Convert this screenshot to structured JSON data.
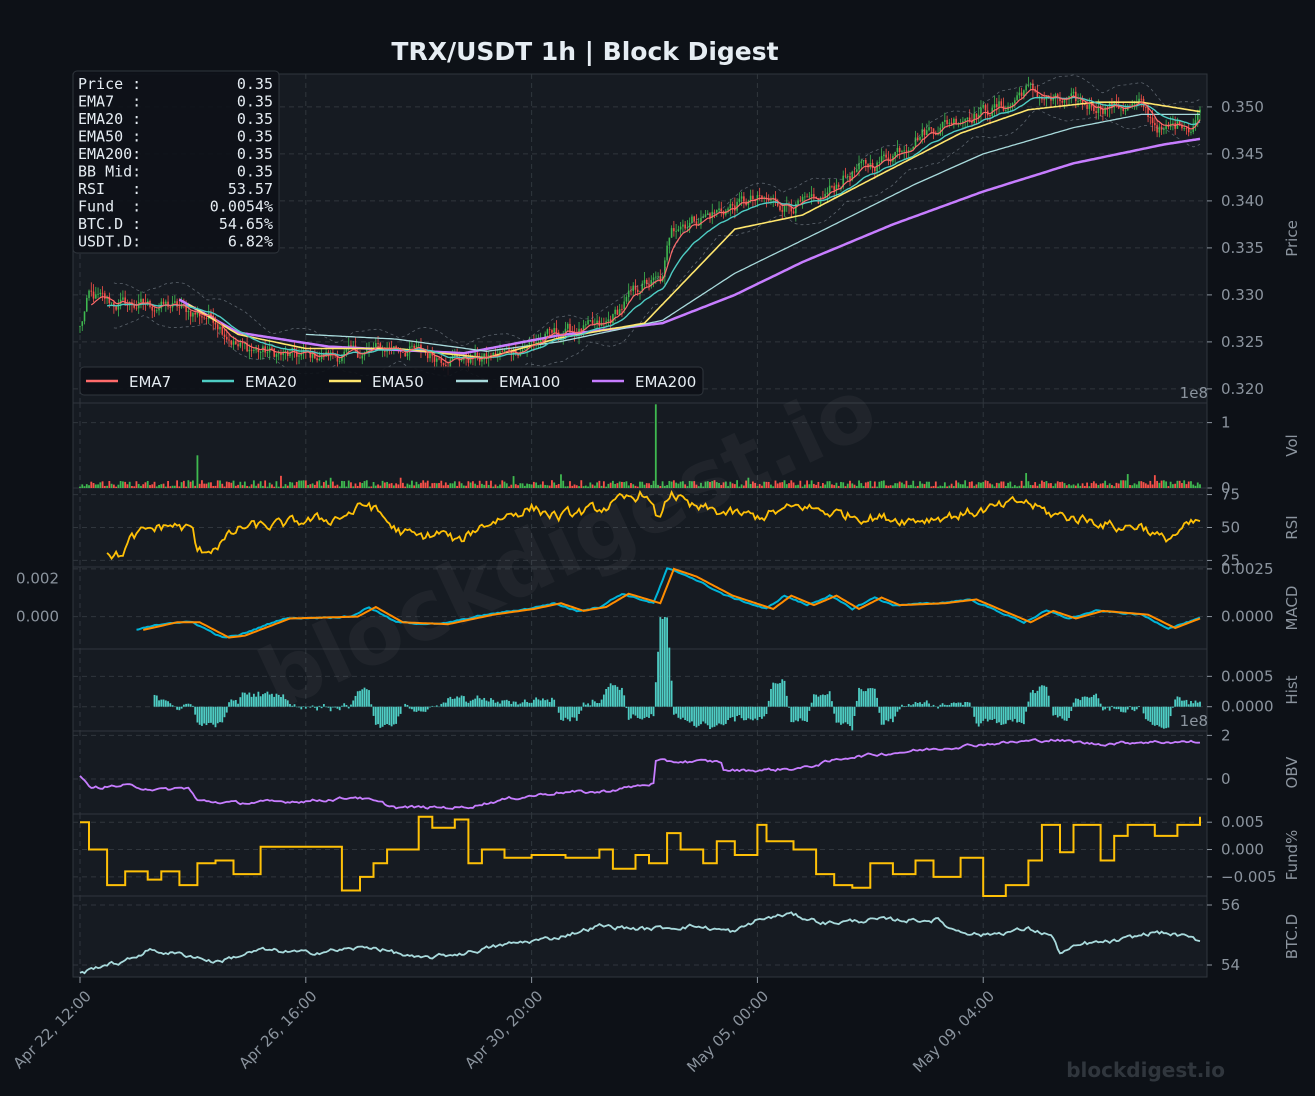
{
  "colors": {
    "background": "#0d1117",
    "panel": "#161b22",
    "grid": "#30363d",
    "text": "#e6edf3",
    "muted": "#8b949e",
    "candle_up": "#3fb950",
    "candle_down": "#f85149",
    "ema7": "#ff6b6b",
    "ema20": "#4ecdc4",
    "ema50": "#ffe66d",
    "ema100": "#a8dadc",
    "ema200": "#c77dff",
    "rsi": "#ffc107",
    "macd": "#00b4d8",
    "signal": "#ff8c00",
    "hist": "#4ecdc4",
    "obv": "#c77dff",
    "fund": "#ffc107",
    "btcd": "#a8dadc"
  },
  "chart_data": {
    "type": "line",
    "title": "TRX/USDT  1h  |  Block Digest",
    "watermark": "blockdigest.io",
    "brand": "blockdigest.io",
    "x": {
      "start": "2024-04-22 12:00",
      "end": "2024-05-12 16:00",
      "interval": "1h",
      "tick_labels": [
        "Apr 22, 12:00",
        "Apr 26, 16:00",
        "Apr 30, 20:00",
        "May 05, 00:00",
        "May 09, 04:00"
      ]
    },
    "info_box": [
      {
        "label": "Price :",
        "value": "0.35"
      },
      {
        "label": "EMA7  :",
        "value": "0.35"
      },
      {
        "label": "EMA20 :",
        "value": "0.35"
      },
      {
        "label": "EMA50 :",
        "value": "0.35"
      },
      {
        "label": "EMA200:",
        "value": "0.35"
      },
      {
        "label": "BB Mid:",
        "value": "0.35"
      },
      {
        "label": "RSI   :",
        "value": "53.57"
      },
      {
        "label": "Fund  :",
        "value": "0.0054%"
      },
      {
        "label": "BTC.D :",
        "value": "54.65%"
      },
      {
        "label": "USDT.D:",
        "value": "6.82%"
      }
    ],
    "legend": [
      "EMA7",
      "EMA20",
      "EMA50",
      "EMA100",
      "EMA200"
    ],
    "panels": [
      {
        "key": "price",
        "ylabel": "Price",
        "ylim": [
          0.3185,
          0.3535
        ],
        "ticks": [
          0.32,
          0.325,
          0.33,
          0.335,
          0.34,
          0.345,
          0.35
        ],
        "tick_labels": [
          "0.320",
          "0.325",
          "0.330",
          "0.335",
          "0.340",
          "0.345",
          "0.350"
        ]
      },
      {
        "key": "vol",
        "ylabel": "Vol",
        "ylim": [
          0,
          1.3
        ],
        "exponent": "1e8",
        "ticks": [
          0,
          1
        ],
        "tick_labels": [
          "0",
          "1"
        ]
      },
      {
        "key": "rsi",
        "ylabel": "RSI",
        "ylim": [
          20,
          80
        ],
        "ticks": [
          25,
          50,
          75
        ],
        "tick_labels": [
          "25",
          "50",
          "75"
        ]
      },
      {
        "key": "macd",
        "ylabel": "MACD",
        "ylim": [
          -0.0017,
          0.0026
        ],
        "ticks": [
          0,
          0.0025
        ],
        "tick_labels": [
          "0.0000",
          "0.0025"
        ],
        "left_ticks": [
          0,
          0.002
        ],
        "left_tick_labels": [
          "0.000",
          "0.002"
        ]
      },
      {
        "key": "hist",
        "ylabel": "Hist",
        "ylim": [
          -0.0004,
          0.00095
        ],
        "ticks": [
          0,
          0.0005
        ],
        "tick_labels": [
          "0.0000",
          "0.0005"
        ]
      },
      {
        "key": "obv",
        "ylabel": "OBV",
        "ylim": [
          -1.6,
          2.2
        ],
        "exponent": "1e8",
        "ticks": [
          0,
          2
        ],
        "tick_labels": [
          "0",
          "2"
        ]
      },
      {
        "key": "fund",
        "ylabel": "Fund%",
        "ylim": [
          -0.0085,
          0.0065
        ],
        "ticks": [
          -0.005,
          0,
          0.005
        ],
        "tick_labels": [
          "−0.005",
          "0.000",
          "0.005"
        ]
      },
      {
        "key": "btcd",
        "ylabel": "BTC.D",
        "ylim": [
          53.6,
          56.3
        ],
        "ticks": [
          54,
          56
        ],
        "tick_labels": [
          "54",
          "56"
        ]
      }
    ],
    "anchors": {
      "price": [
        [
          0,
          0.3265
        ],
        [
          4,
          0.3298
        ],
        [
          16,
          0.329
        ],
        [
          40,
          0.3288
        ],
        [
          60,
          0.3275
        ],
        [
          70,
          0.3245
        ],
        [
          92,
          0.3235
        ],
        [
          118,
          0.3236
        ],
        [
          140,
          0.3245
        ],
        [
          158,
          0.3235
        ],
        [
          180,
          0.3232
        ],
        [
          196,
          0.3245
        ],
        [
          212,
          0.326
        ],
        [
          232,
          0.3265
        ],
        [
          248,
          0.331
        ],
        [
          258,
          0.3315
        ],
        [
          262,
          0.3375
        ],
        [
          272,
          0.338
        ],
        [
          296,
          0.34
        ],
        [
          326,
          0.3395
        ],
        [
          338,
          0.3425
        ],
        [
          356,
          0.3445
        ],
        [
          372,
          0.3472
        ],
        [
          394,
          0.3493
        ],
        [
          412,
          0.3502
        ],
        [
          418,
          0.352
        ],
        [
          432,
          0.3505
        ],
        [
          452,
          0.3502
        ],
        [
          470,
          0.35
        ],
        [
          480,
          0.3472
        ],
        [
          488,
          0.3485
        ],
        [
          492,
          0.348
        ],
        [
          496,
          0.3495
        ]
      ],
      "ema200": [
        [
          44,
          0.3295
        ],
        [
          70,
          0.326
        ],
        [
          110,
          0.3245
        ],
        [
          170,
          0.3238
        ],
        [
          212,
          0.3257
        ],
        [
          258,
          0.327
        ],
        [
          290,
          0.33
        ],
        [
          320,
          0.3335
        ],
        [
          360,
          0.3375
        ],
        [
          400,
          0.341
        ],
        [
          440,
          0.344
        ],
        [
          480,
          0.346
        ],
        [
          496,
          0.3466
        ]
      ],
      "ema100": [
        [
          100,
          0.3258
        ],
        [
          140,
          0.3253
        ],
        [
          180,
          0.324
        ],
        [
          212,
          0.325
        ],
        [
          258,
          0.3273
        ],
        [
          290,
          0.3323
        ],
        [
          330,
          0.337
        ],
        [
          370,
          0.3418
        ],
        [
          400,
          0.345
        ],
        [
          440,
          0.3478
        ],
        [
          470,
          0.3492
        ],
        [
          496,
          0.3492
        ]
      ],
      "ema50": [
        [
          48,
          0.329
        ],
        [
          70,
          0.3258
        ],
        [
          100,
          0.3243
        ],
        [
          140,
          0.3243
        ],
        [
          180,
          0.3233
        ],
        [
          212,
          0.3254
        ],
        [
          250,
          0.327
        ],
        [
          262,
          0.33
        ],
        [
          290,
          0.337
        ],
        [
          320,
          0.3385
        ],
        [
          356,
          0.343
        ],
        [
          390,
          0.3472
        ],
        [
          420,
          0.3497
        ],
        [
          450,
          0.3505
        ],
        [
          470,
          0.3505
        ],
        [
          496,
          0.3495
        ]
      ],
      "rsi": [
        [
          12,
          32
        ],
        [
          18,
          28
        ],
        [
          22,
          40
        ],
        [
          30,
          48
        ],
        [
          40,
          52
        ],
        [
          50,
          48
        ],
        [
          52,
          30
        ],
        [
          60,
          36
        ],
        [
          72,
          50
        ],
        [
          90,
          52
        ],
        [
          100,
          55
        ],
        [
          110,
          56
        ],
        [
          118,
          60
        ],
        [
          128,
          68
        ],
        [
          134,
          58
        ],
        [
          140,
          48
        ],
        [
          150,
          42
        ],
        [
          160,
          46
        ],
        [
          168,
          38
        ],
        [
          176,
          50
        ],
        [
          190,
          60
        ],
        [
          200,
          65
        ],
        [
          212,
          58
        ],
        [
          230,
          64
        ],
        [
          244,
          72
        ],
        [
          250,
          77
        ],
        [
          256,
          55
        ],
        [
          262,
          78
        ],
        [
          270,
          65
        ],
        [
          290,
          60
        ],
        [
          300,
          58
        ],
        [
          320,
          66
        ],
        [
          330,
          62
        ],
        [
          350,
          58
        ],
        [
          370,
          56
        ],
        [
          390,
          60
        ],
        [
          410,
          66
        ],
        [
          418,
          70
        ],
        [
          430,
          60
        ],
        [
          450,
          55
        ],
        [
          460,
          50
        ],
        [
          470,
          52
        ],
        [
          480,
          40
        ],
        [
          490,
          50
        ],
        [
          496,
          54
        ]
      ],
      "macd": [
        [
          25,
          -0.0007
        ],
        [
          40,
          -0.0003
        ],
        [
          50,
          -0.0003
        ],
        [
          63,
          -0.0011
        ],
        [
          70,
          -0.001
        ],
        [
          90,
          -0.0001
        ],
        [
          120,
          0.0
        ],
        [
          128,
          0.0005
        ],
        [
          140,
          -0.0003
        ],
        [
          160,
          -0.0004
        ],
        [
          180,
          0.0001
        ],
        [
          198,
          0.0004
        ],
        [
          210,
          0.0007
        ],
        [
          220,
          0.0003
        ],
        [
          230,
          0.0005
        ],
        [
          240,
          0.0012
        ],
        [
          254,
          0.0007
        ],
        [
          260,
          0.0025
        ],
        [
          270,
          0.0021
        ],
        [
          286,
          0.0011
        ],
        [
          304,
          0.0004
        ],
        [
          312,
          0.0011
        ],
        [
          322,
          0.0006
        ],
        [
          332,
          0.0011
        ],
        [
          342,
          0.0004
        ],
        [
          352,
          0.001
        ],
        [
          360,
          0.0006
        ],
        [
          380,
          0.0007
        ],
        [
          394,
          0.0009
        ],
        [
          404,
          0.0004
        ],
        [
          418,
          -0.0003
        ],
        [
          428,
          0.0003
        ],
        [
          438,
          -0.0001
        ],
        [
          450,
          0.0003
        ],
        [
          470,
          0.0001
        ],
        [
          482,
          -0.0006
        ],
        [
          496,
          -0.0001
        ]
      ],
      "obv": [
        [
          0,
          0.2
        ],
        [
          4,
          -0.4
        ],
        [
          20,
          -0.3
        ],
        [
          36,
          -0.5
        ],
        [
          48,
          -0.4
        ],
        [
          52,
          -1.0
        ],
        [
          70,
          -1.1
        ],
        [
          100,
          -1.0
        ],
        [
          116,
          -0.9
        ],
        [
          122,
          -0.8
        ],
        [
          140,
          -1.3
        ],
        [
          170,
          -1.3
        ],
        [
          190,
          -0.9
        ],
        [
          212,
          -0.6
        ],
        [
          230,
          -0.6
        ],
        [
          254,
          -0.2
        ],
        [
          255,
          0.8
        ],
        [
          270,
          0.8
        ],
        [
          284,
          0.8
        ],
        [
          285,
          0.4
        ],
        [
          300,
          0.4
        ],
        [
          320,
          0.5
        ],
        [
          340,
          1.0
        ],
        [
          380,
          1.4
        ],
        [
          400,
          1.6
        ],
        [
          430,
          1.8
        ],
        [
          450,
          1.6
        ],
        [
          470,
          1.7
        ],
        [
          496,
          1.7
        ]
      ],
      "btcd": [
        [
          0,
          53.7
        ],
        [
          10,
          54.0
        ],
        [
          20,
          54.1
        ],
        [
          30,
          54.5
        ],
        [
          50,
          54.3
        ],
        [
          60,
          54.1
        ],
        [
          80,
          54.5
        ],
        [
          100,
          54.4
        ],
        [
          130,
          54.6
        ],
        [
          150,
          54.2
        ],
        [
          170,
          54.4
        ],
        [
          190,
          54.7
        ],
        [
          210,
          54.9
        ],
        [
          230,
          55.3
        ],
        [
          250,
          55.2
        ],
        [
          272,
          55.3
        ],
        [
          290,
          55.1
        ],
        [
          300,
          55.5
        ],
        [
          314,
          55.7
        ],
        [
          330,
          55.4
        ],
        [
          350,
          55.5
        ],
        [
          380,
          55.5
        ],
        [
          386,
          55.2
        ],
        [
          400,
          55.0
        ],
        [
          420,
          55.2
        ],
        [
          430,
          55.0
        ],
        [
          434,
          54.4
        ],
        [
          445,
          54.7
        ],
        [
          460,
          54.8
        ],
        [
          476,
          55.1
        ],
        [
          486,
          55.0
        ],
        [
          496,
          54.8
        ]
      ],
      "fund_levels": [
        [
          0,
          0.005
        ],
        [
          4,
          0.0
        ],
        [
          12,
          -0.0065
        ],
        [
          20,
          -0.004
        ],
        [
          30,
          -0.0055
        ],
        [
          36,
          -0.004
        ],
        [
          44,
          -0.0065
        ],
        [
          52,
          -0.0025
        ],
        [
          60,
          -0.002
        ],
        [
          68,
          -0.0045
        ],
        [
          80,
          0.0005
        ],
        [
          98,
          0.0005
        ],
        [
          116,
          -0.0075
        ],
        [
          124,
          -0.005
        ],
        [
          130,
          -0.0025
        ],
        [
          136,
          0.0
        ],
        [
          150,
          0.006
        ],
        [
          156,
          0.004
        ],
        [
          166,
          0.0055
        ],
        [
          172,
          -0.0025
        ],
        [
          178,
          0.0
        ],
        [
          188,
          -0.0015
        ],
        [
          200,
          -0.001
        ],
        [
          215,
          -0.0015
        ],
        [
          230,
          0.0
        ],
        [
          236,
          -0.0035
        ],
        [
          246,
          -0.001
        ],
        [
          252,
          -0.0025
        ],
        [
          260,
          0.003
        ],
        [
          266,
          0.0
        ],
        [
          276,
          -0.0025
        ],
        [
          282,
          0.0015
        ],
        [
          290,
          -0.001
        ],
        [
          300,
          0.0045
        ],
        [
          304,
          0.0015
        ],
        [
          316,
          0.0
        ],
        [
          326,
          -0.0045
        ],
        [
          334,
          -0.0065
        ],
        [
          342,
          -0.007
        ],
        [
          350,
          -0.0025
        ],
        [
          360,
          -0.0045
        ],
        [
          370,
          -0.002
        ],
        [
          378,
          -0.005
        ],
        [
          390,
          -0.0015
        ],
        [
          400,
          -0.0085
        ],
        [
          410,
          -0.0065
        ],
        [
          420,
          -0.002
        ],
        [
          426,
          0.0045
        ],
        [
          434,
          -0.0005
        ],
        [
          440,
          0.0045
        ],
        [
          452,
          -0.002
        ],
        [
          458,
          0.0025
        ],
        [
          464,
          0.0045
        ],
        [
          476,
          0.0025
        ],
        [
          486,
          0.0045
        ],
        [
          496,
          0.006
        ]
      ]
    },
    "n_bars": 497
  }
}
